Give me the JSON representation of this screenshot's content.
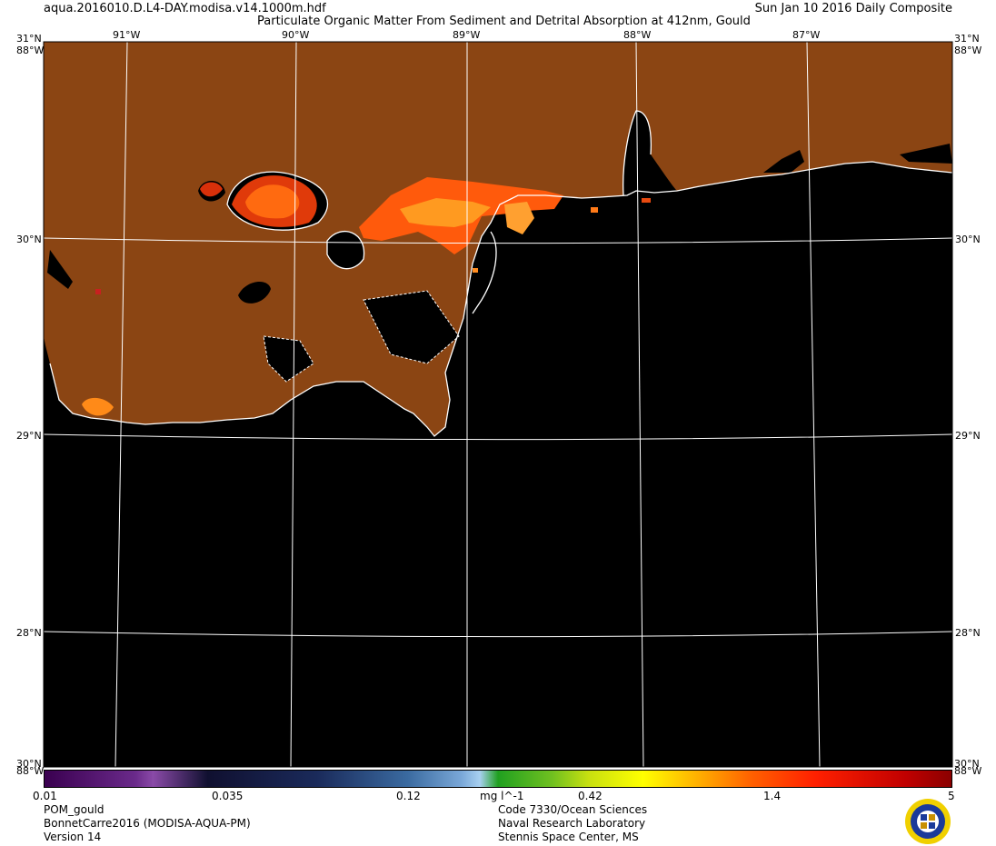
{
  "header": {
    "filename": "aqua.2016010.D.L4-DAY.modisa.v14.1000m.hdf",
    "title": "Particulate Organic Matter From Sediment and Detrital Absorption at 412nm, Gould",
    "date": "Sun Jan 10 2016 Daily Composite"
  },
  "map": {
    "lon_labels": [
      "91°W",
      "90°W",
      "89°W",
      "88°W",
      "87°W"
    ],
    "lat_labels": [
      "31°N",
      "30°N",
      "29°N",
      "28°N"
    ],
    "edge_labels": {
      "top_left": "31°N",
      "top_right": "31°N",
      "corner_w": "88°W",
      "corner_n": "30°N"
    },
    "colors": {
      "land": "#8B4513",
      "water": "#000000",
      "coast": "#ffffff",
      "grid": "#ffffff"
    }
  },
  "colorbar": {
    "tick_labels": [
      "0.01",
      "0.035",
      "0.12",
      "0.42",
      "1.4",
      "5"
    ],
    "units": "mg l^-1",
    "scale": "log",
    "range": [
      0.01,
      5
    ]
  },
  "footer": {
    "left": [
      "POM_gould",
      "BonnetCarre2016 (MODISA-AQUA-PM)",
      "Version 14"
    ],
    "center": [
      "Code 7330/Ocean Sciences",
      "Naval Research Laboratory",
      "Stennis Space Center, MS"
    ]
  }
}
